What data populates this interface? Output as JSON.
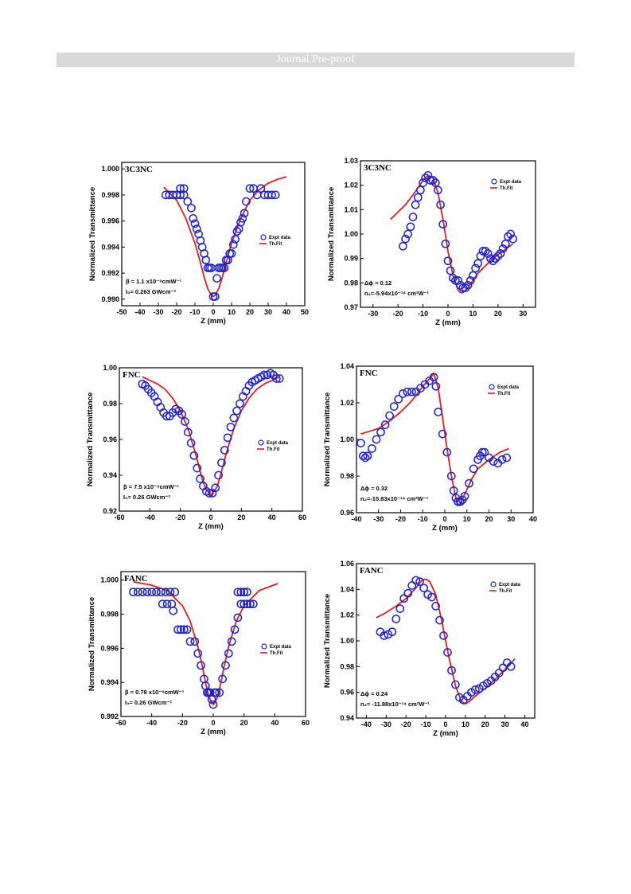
{
  "header": {
    "banner": "Journal Pre-proof"
  },
  "legend": {
    "expt": "Expt data",
    "fit": "Th.Fit"
  },
  "colors": {
    "data": "#1f1fd6",
    "fit": "#dd1f1f",
    "banner_bg": "#d9d9d9"
  },
  "chart_data": [
    {
      "type": "scatter",
      "title": "3C3NC",
      "xlabel": "Z (mm)",
      "ylabel": "Normalized Transmittance",
      "xlim": [
        -50,
        50
      ],
      "ylim": [
        0.9895,
        1.0005
      ],
      "xticks": [
        -50,
        -40,
        -30,
        -20,
        -10,
        0,
        10,
        20,
        30,
        40,
        50
      ],
      "yticks": [
        0.99,
        0.992,
        0.994,
        0.996,
        0.998,
        1.0
      ],
      "ytick_labels": [
        "0.990",
        "0.992",
        "0.994",
        "0.996",
        "0.998",
        "1.000"
      ],
      "annotations": [
        "β = 1.1 x10⁻⁹cmW⁻¹",
        "I₀= 0.263 GWcm⁻²"
      ],
      "series": [
        {
          "name": "Expt data",
          "kind": "scatter",
          "x": [
            -26,
            -24,
            -22,
            -20,
            -18,
            -16,
            -18,
            -16,
            -14,
            -12,
            -11,
            -10,
            -9,
            -8,
            -7,
            -6,
            -5,
            -4,
            -3,
            -2,
            -1,
            0,
            1,
            2,
            3,
            4,
            5,
            6,
            7,
            8,
            9,
            10,
            11,
            12,
            13,
            14,
            15,
            16,
            17,
            18,
            20,
            22,
            24,
            26,
            28,
            30,
            32,
            34
          ],
          "y": [
            0.998,
            0.998,
            0.998,
            0.998,
            0.998,
            0.998,
            0.9985,
            0.9985,
            0.9975,
            0.997,
            0.9962,
            0.9958,
            0.9954,
            0.995,
            0.9945,
            0.994,
            0.9935,
            0.993,
            0.9924,
            0.9924,
            0.9924,
            0.9902,
            0.9902,
            0.9916,
            0.9924,
            0.9924,
            0.9924,
            0.9924,
            0.993,
            0.993,
            0.9935,
            0.9935,
            0.9942,
            0.9946,
            0.9952,
            0.9954,
            0.9959,
            0.9962,
            0.9966,
            0.9975,
            0.9985,
            0.9985,
            0.998,
            0.9985,
            0.998,
            0.998,
            0.998,
            0.998
          ]
        },
        {
          "name": "Th.Fit",
          "kind": "line",
          "x": [
            -27,
            -20,
            -15,
            -10,
            -7,
            -5,
            -3,
            -1,
            0,
            1,
            3,
            5,
            7,
            10,
            15,
            20,
            25,
            30,
            35,
            40
          ],
          "y": [
            0.9986,
            0.9976,
            0.9962,
            0.9943,
            0.9928,
            0.9917,
            0.9908,
            0.9903,
            0.9902,
            0.9903,
            0.9908,
            0.9917,
            0.9928,
            0.9943,
            0.9962,
            0.9976,
            0.9984,
            0.9989,
            0.9992,
            0.9994
          ]
        }
      ]
    },
    {
      "type": "scatter",
      "title": "3C3NC",
      "xlabel": "Z (mm)",
      "ylabel": "Normalized Transmittance",
      "xlim": [
        -35,
        35
      ],
      "ylim": [
        0.97,
        1.03
      ],
      "xticks": [
        -30,
        -20,
        -10,
        0,
        10,
        20,
        30
      ],
      "yticks": [
        0.97,
        0.98,
        0.99,
        1.0,
        1.01,
        1.02,
        1.03
      ],
      "ytick_labels": [
        "0.97",
        "0.98",
        "0.99",
        "1.00",
        "1.01",
        "1.02",
        "1.03"
      ],
      "annotations": [
        "Δϕ = 0.12",
        "n₂=-5.94x10⁻¹⁴ cm²W⁻¹"
      ],
      "series": [
        {
          "name": "Expt data",
          "kind": "scatter",
          "x": [
            -18,
            -17,
            -16,
            -15,
            -14,
            -13,
            -12,
            -11,
            -10,
            -9,
            -8,
            -7,
            -6,
            -5,
            -4,
            -3,
            -2,
            -1,
            0,
            1,
            2,
            3,
            4,
            5,
            6,
            7,
            8,
            9,
            10,
            11,
            12,
            13,
            14,
            15,
            16,
            17,
            18,
            19,
            20,
            21,
            22,
            23,
            24,
            25,
            26
          ],
          "y": [
            0.995,
            0.998,
            1.0,
            1.003,
            1.007,
            1.012,
            1.015,
            1.018,
            1.021,
            1.023,
            1.024,
            1.022,
            1.022,
            1.021,
            1.018,
            1.012,
            1.004,
            0.996,
            0.989,
            0.985,
            0.982,
            0.981,
            0.981,
            0.979,
            0.978,
            0.978,
            0.979,
            0.981,
            0.983,
            0.986,
            0.988,
            0.991,
            0.993,
            0.993,
            0.992,
            0.99,
            0.989,
            0.99,
            0.991,
            0.992,
            0.994,
            0.996,
            0.999,
            1.0,
            0.998
          ]
        },
        {
          "name": "Th.Fit",
          "kind": "line",
          "x": [
            -23,
            -20,
            -17,
            -14,
            -12,
            -10,
            -8,
            -6,
            -4,
            -2,
            0,
            2,
            4,
            5,
            6,
            7,
            8,
            10,
            12,
            15,
            18,
            22,
            26
          ],
          "y": [
            1.006,
            1.009,
            1.012,
            1.016,
            1.019,
            1.022,
            1.024,
            1.023,
            1.017,
            1.006,
            0.993,
            0.983,
            0.977,
            0.976,
            0.976,
            0.977,
            0.978,
            0.981,
            0.984,
            0.987,
            0.99,
            0.993,
            0.996
          ]
        }
      ]
    },
    {
      "type": "scatter",
      "title": "FNC",
      "xlabel": "Z (mm)",
      "ylabel": "Normalized Transmittance",
      "xlim": [
        -60,
        60
      ],
      "ylim": [
        0.92,
        1.0
      ],
      "xticks": [
        -60,
        -40,
        -20,
        0,
        20,
        40,
        60
      ],
      "yticks": [
        0.92,
        0.94,
        0.96,
        0.98,
        1.0
      ],
      "ytick_labels": [
        "0.92",
        "0.94",
        "0.96",
        "0.98",
        "1.00"
      ],
      "annotations": [
        "β = 7.5 x10⁻⁹cmW⁻¹",
        "I₀= 0.26 GWcm⁻²"
      ],
      "series": [
        {
          "name": "Expt data",
          "kind": "scatter",
          "x": [
            -45,
            -43,
            -41,
            -39,
            -37,
            -35,
            -33,
            -31,
            -29,
            -27,
            -25,
            -23,
            -21,
            -19,
            -17,
            -15,
            -13,
            -11,
            -9,
            -7,
            -5,
            -3,
            -1,
            1,
            3,
            5,
            7,
            9,
            11,
            13,
            15,
            17,
            19,
            21,
            23,
            25,
            27,
            29,
            31,
            33,
            35,
            37,
            39,
            41,
            43,
            45
          ],
          "y": [
            0.991,
            0.99,
            0.988,
            0.986,
            0.984,
            0.981,
            0.978,
            0.975,
            0.973,
            0.973,
            0.975,
            0.977,
            0.976,
            0.974,
            0.97,
            0.964,
            0.958,
            0.951,
            0.944,
            0.938,
            0.934,
            0.931,
            0.93,
            0.93,
            0.933,
            0.94,
            0.947,
            0.954,
            0.961,
            0.967,
            0.972,
            0.976,
            0.98,
            0.984,
            0.987,
            0.99,
            0.992,
            0.993,
            0.994,
            0.995,
            0.996,
            0.996,
            0.997,
            0.996,
            0.994,
            0.994
          ]
        },
        {
          "name": "Th.Fit",
          "kind": "line",
          "x": [
            -45,
            -40,
            -35,
            -30,
            -25,
            -20,
            -15,
            -10,
            -7,
            -5,
            -3,
            -1,
            0,
            1,
            3,
            5,
            7,
            10,
            15,
            20,
            25,
            30,
            35,
            40,
            45
          ],
          "y": [
            0.995,
            0.993,
            0.991,
            0.988,
            0.983,
            0.976,
            0.966,
            0.952,
            0.942,
            0.936,
            0.932,
            0.93,
            0.929,
            0.93,
            0.932,
            0.936,
            0.942,
            0.952,
            0.966,
            0.976,
            0.983,
            0.988,
            0.991,
            0.993,
            0.995
          ]
        }
      ]
    },
    {
      "type": "scatter",
      "title": "FNC",
      "xlabel": "Z (mm)",
      "ylabel": "Normalized Transmittance",
      "xlim": [
        -40,
        40
      ],
      "ylim": [
        0.96,
        1.04
      ],
      "xticks": [
        -40,
        -30,
        -20,
        -10,
        0,
        10,
        20,
        30,
        40
      ],
      "yticks": [
        0.96,
        0.98,
        1.0,
        1.02,
        1.04
      ],
      "ytick_labels": [
        "0.96",
        "0.98",
        "1.00",
        "1.02",
        "1.04"
      ],
      "annotations": [
        "Δϕ = 0.32",
        "n₂=-15.83x10⁻¹⁴ cm²W⁻¹"
      ],
      "series": [
        {
          "name": "Expt data",
          "kind": "scatter",
          "x": [
            -38,
            -37,
            -36,
            -35,
            -33,
            -31,
            -29,
            -27,
            -25,
            -23,
            -21,
            -19,
            -17,
            -15,
            -13,
            -11,
            -9,
            -7,
            -5,
            -4,
            -3,
            -1,
            1,
            3,
            4,
            5,
            6,
            7,
            8,
            9,
            11,
            13,
            15,
            16,
            17,
            18,
            20,
            22,
            24,
            26,
            28
          ],
          "y": [
            0.998,
            0.991,
            0.99,
            0.991,
            0.995,
            1.0,
            1.004,
            1.008,
            1.013,
            1.018,
            1.022,
            1.025,
            1.026,
            1.026,
            1.026,
            1.028,
            1.03,
            1.032,
            1.034,
            1.029,
            1.015,
            1.003,
            0.993,
            0.98,
            0.972,
            0.968,
            0.966,
            0.966,
            0.967,
            0.969,
            0.976,
            0.984,
            0.989,
            0.991,
            0.993,
            0.993,
            0.99,
            0.988,
            0.987,
            0.989,
            0.99
          ]
        },
        {
          "name": "Th.Fit",
          "kind": "line",
          "x": [
            -38,
            -30,
            -25,
            -20,
            -15,
            -10,
            -7,
            -5,
            -3,
            -1,
            1,
            3,
            5,
            6,
            7,
            9,
            12,
            15,
            20,
            25,
            29
          ],
          "y": [
            1.003,
            1.006,
            1.01,
            1.015,
            1.021,
            1.029,
            1.033,
            1.036,
            1.028,
            1.012,
            0.995,
            0.98,
            0.968,
            0.964,
            0.965,
            0.97,
            0.978,
            0.984,
            0.989,
            0.993,
            0.995
          ]
        }
      ]
    },
    {
      "type": "scatter",
      "title": "FANC",
      "xlabel": "Z (mm)",
      "ylabel": "Normalized Transmittance",
      "xlim": [
        -60,
        60
      ],
      "ylim": [
        0.992,
        1.0005
      ],
      "xticks": [
        -60,
        -40,
        -20,
        0,
        20,
        40,
        60
      ],
      "yticks": [
        0.992,
        0.994,
        0.996,
        0.998,
        1.0
      ],
      "ytick_labels": [
        "0.992",
        "0.994",
        "0.996",
        "0.998",
        "1.000"
      ],
      "annotations": [
        "β = 0.78 x10⁻⁹cmW⁻¹",
        "I₀= 0.26 GWcm⁻²"
      ],
      "series": [
        {
          "name": "Expt data",
          "kind": "scatter",
          "x": [
            -52,
            -49,
            -46,
            -43,
            -40,
            -37,
            -34,
            -31,
            -28,
            -25,
            -33,
            -30,
            -27,
            -26,
            -23,
            -21,
            -19,
            -17,
            -15,
            -12,
            -10,
            -8,
            -6,
            -5,
            -4,
            -3,
            -2,
            -1,
            0,
            1,
            2,
            4,
            6,
            8,
            10,
            12,
            14,
            16,
            18,
            20,
            22,
            24,
            26,
            16,
            18,
            20,
            22
          ],
          "y": [
            0.9993,
            0.9993,
            0.9993,
            0.9993,
            0.9993,
            0.9993,
            0.9993,
            0.9993,
            0.9993,
            0.9993,
            0.9986,
            0.9986,
            0.9986,
            0.9982,
            0.9971,
            0.9971,
            0.9971,
            0.9971,
            0.9964,
            0.9964,
            0.9957,
            0.995,
            0.9942,
            0.9938,
            0.9934,
            0.9934,
            0.9934,
            0.993,
            0.9927,
            0.9934,
            0.9934,
            0.9934,
            0.9942,
            0.995,
            0.9957,
            0.9964,
            0.9971,
            0.9978,
            0.9986,
            0.9986,
            0.9986,
            0.9986,
            0.9986,
            0.9993,
            0.9993,
            0.9993,
            0.9993
          ]
        },
        {
          "name": "Th.Fit",
          "kind": "line",
          "x": [
            -52,
            -40,
            -30,
            -20,
            -15,
            -10,
            -7,
            -5,
            -3,
            -1,
            0,
            1,
            3,
            5,
            7,
            10,
            15,
            20,
            30,
            42
          ],
          "y": [
            0.9999,
            0.9997,
            0.9994,
            0.9985,
            0.9976,
            0.9961,
            0.9949,
            0.994,
            0.9932,
            0.9928,
            0.9927,
            0.9928,
            0.9932,
            0.994,
            0.9949,
            0.9961,
            0.9976,
            0.9985,
            0.9994,
            0.9998
          ]
        }
      ]
    },
    {
      "type": "scatter",
      "title": "FANC",
      "xlabel": "Z (mm)",
      "ylabel": "Normalized Transmittance",
      "xlim": [
        -45,
        45
      ],
      "ylim": [
        0.94,
        1.06
      ],
      "xticks": [
        -40,
        -30,
        -20,
        -10,
        0,
        10,
        20,
        30,
        40
      ],
      "yticks": [
        0.94,
        0.96,
        0.98,
        1.0,
        1.02,
        1.04,
        1.06
      ],
      "ytick_labels": [
        "0.94",
        "0.96",
        "0.98",
        "1.00",
        "1.02",
        "1.04",
        "1.06"
      ],
      "annotations": [
        "Δϕ = 0.24",
        "n₂= -11.88x10⁻¹⁴ cm²W⁻¹"
      ],
      "series": [
        {
          "name": "Expt data",
          "kind": "scatter",
          "x": [
            -33,
            -31,
            -29,
            -27,
            -25,
            -23,
            -21,
            -19,
            -17,
            -15,
            -13,
            -11,
            -9,
            -7,
            -5,
            -3,
            -1,
            1,
            3,
            5,
            7,
            9,
            11,
            13,
            15,
            17,
            19,
            21,
            23,
            25,
            27,
            29,
            31,
            33
          ],
          "y": [
            1.007,
            1.004,
            1.005,
            1.007,
            1.017,
            1.025,
            1.033,
            1.037,
            1.043,
            1.047,
            1.046,
            1.041,
            1.036,
            1.034,
            1.027,
            1.016,
            1.004,
            0.991,
            0.977,
            0.966,
            0.956,
            0.954,
            0.957,
            0.96,
            0.962,
            0.963,
            0.965,
            0.967,
            0.969,
            0.972,
            0.975,
            0.979,
            0.983,
            0.98
          ]
        },
        {
          "name": "Th.Fit",
          "kind": "line",
          "x": [
            -35,
            -30,
            -25,
            -20,
            -15,
            -12,
            -10,
            -8,
            -5,
            -2,
            0,
            2,
            5,
            8,
            10,
            12,
            15,
            20,
            25,
            30,
            35
          ],
          "y": [
            1.018,
            1.022,
            1.027,
            1.033,
            1.041,
            1.047,
            1.048,
            1.046,
            1.036,
            1.016,
            1.0,
            0.985,
            0.965,
            0.953,
            0.951,
            0.953,
            0.957,
            0.963,
            0.97,
            0.978,
            0.986
          ]
        }
      ]
    }
  ]
}
